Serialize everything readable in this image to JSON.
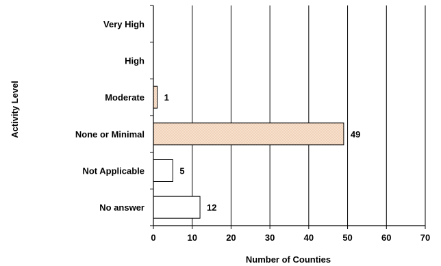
{
  "chart_data": {
    "type": "bar",
    "orientation": "horizontal",
    "title": "",
    "xlabel": "Number of Counties",
    "ylabel": "Activity Level",
    "categories": [
      "Very High",
      "High",
      "Moderate",
      "None or Minimal",
      "Not Applicable",
      "No answer"
    ],
    "values": [
      null,
      null,
      1,
      49,
      5,
      12
    ],
    "data_labels": [
      "",
      "",
      "1",
      "49",
      "5",
      "12"
    ],
    "xlim": [
      0,
      70
    ],
    "x_ticks": [
      "0",
      "10",
      "20",
      "30",
      "40",
      "50",
      "60",
      "70"
    ],
    "grid": "vertical",
    "legend": "none",
    "bar_fills": [
      "pattern",
      "pattern",
      "pattern",
      "pattern",
      "white",
      "white"
    ],
    "colors": {
      "pattern_base": "#f7e0cc",
      "pattern_dot": "#e2b08c",
      "bar_edge": "#000000",
      "white_fill": "#ffffff",
      "grid": "#000000"
    }
  }
}
